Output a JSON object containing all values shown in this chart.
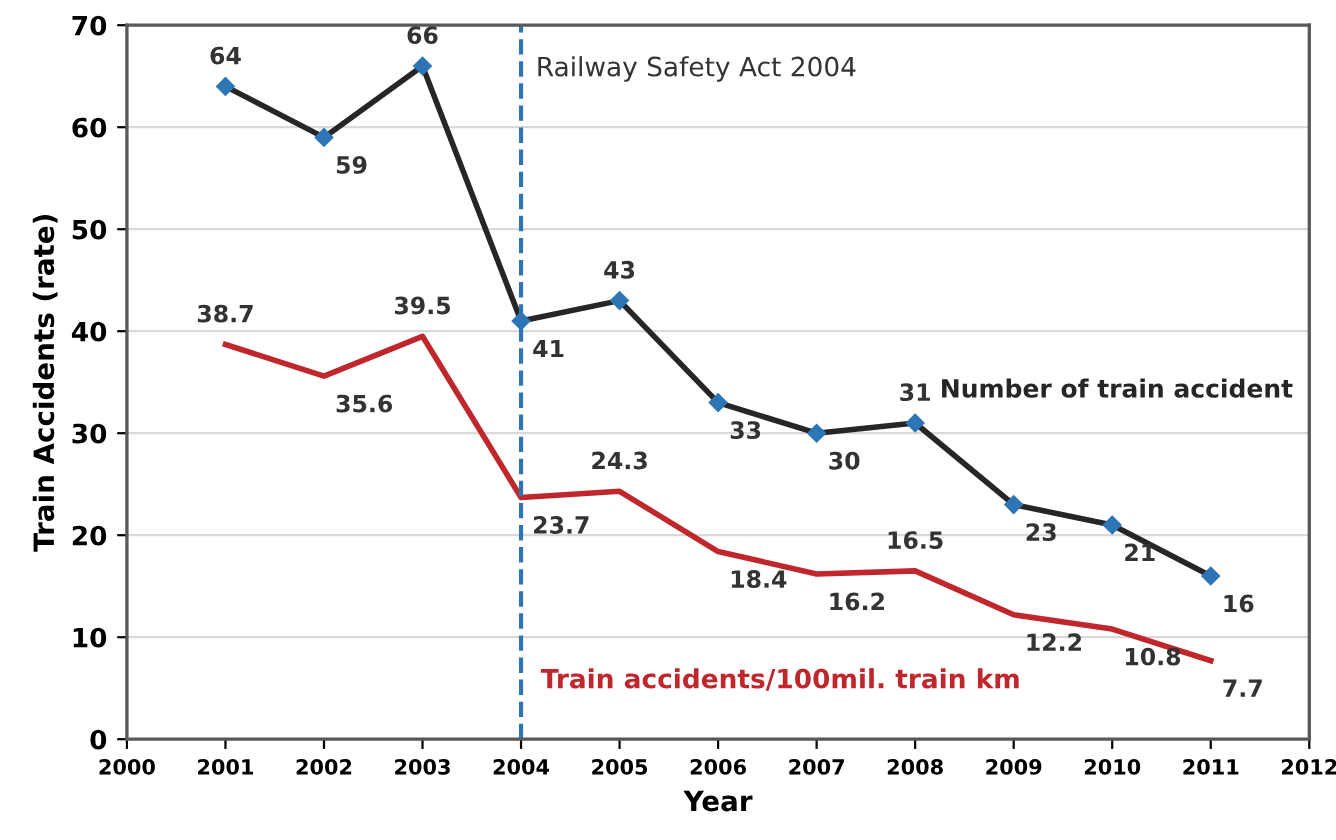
{
  "chart_data": {
    "type": "line",
    "xlabel": "Year",
    "ylabel": "Train Accidents (rate)",
    "x": [
      2001,
      2002,
      2003,
      2004,
      2005,
      2006,
      2007,
      2008,
      2009,
      2010,
      2011
    ],
    "series": [
      {
        "name": "Number of train accident",
        "color": "#262626",
        "marker": "diamond",
        "values": [
          64,
          59,
          66,
          41,
          43,
          33,
          30,
          31,
          23,
          21,
          16
        ]
      },
      {
        "name": "Train accidents/100mil. train km",
        "color": "#c0272d",
        "marker": "none",
        "values": [
          38.7,
          35.6,
          39.5,
          23.7,
          24.3,
          18.4,
          16.2,
          16.5,
          12.2,
          10.8,
          7.7
        ]
      }
    ],
    "xlim": [
      2000,
      2012
    ],
    "xticks": [
      2000,
      2001,
      2002,
      2003,
      2004,
      2005,
      2006,
      2007,
      2008,
      2009,
      2010,
      2011,
      2012
    ],
    "ylim": [
      0,
      70
    ],
    "yticks": [
      0,
      10,
      20,
      30,
      40,
      50,
      60,
      70
    ],
    "grid": "y",
    "data_labels": true,
    "legend": false,
    "ref_lines": [
      {
        "axis": "x",
        "value": 2004,
        "label": "Railway Safety Act 2004",
        "color": "#2e75b6",
        "line_style": "dashed"
      }
    ]
  }
}
